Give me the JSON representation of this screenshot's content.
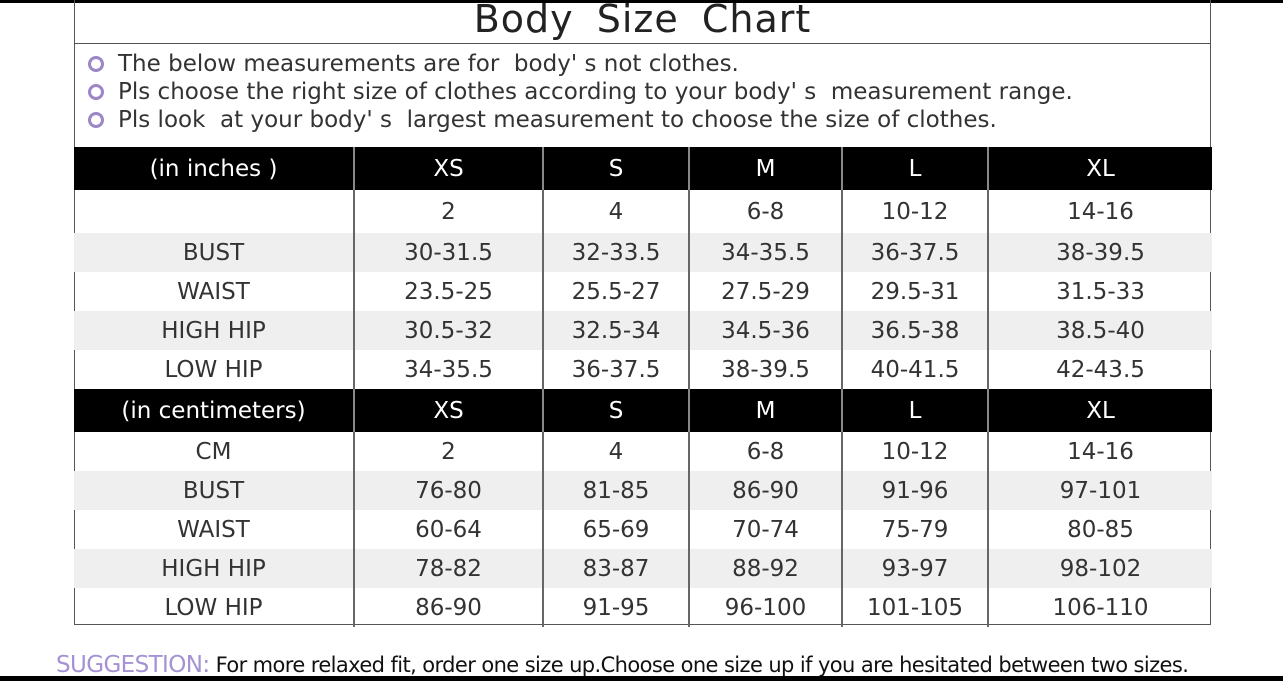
{
  "title": "Body  Size  Chart",
  "notes": [
    "The below measurements are for  body' s not clothes.",
    "Pls choose the right size of clothes according to your body' s  measurement range.",
    "Pls look  at your body' s  largest measurement to choose the size of clothes."
  ],
  "accent_color": "#9b86c8",
  "inches": {
    "header": [
      "(in  inches )",
      "XS",
      "S",
      "M",
      "L",
      "XL"
    ],
    "rows": [
      [
        "",
        "2",
        "4",
        "6-8",
        "10-12",
        "14-16"
      ],
      [
        "BUST",
        "30-31.5",
        "32-33.5",
        "34-35.5",
        "36-37.5",
        "38-39.5"
      ],
      [
        "WAIST",
        "23.5-25",
        "25.5-27",
        "27.5-29",
        "29.5-31",
        "31.5-33"
      ],
      [
        "HIGH HIP",
        "30.5-32",
        "32.5-34",
        "34.5-36",
        "36.5-38",
        "38.5-40"
      ],
      [
        "LOW HIP",
        "34-35.5",
        "36-37.5",
        "38-39.5",
        "40-41.5",
        "42-43.5"
      ]
    ]
  },
  "centimeters": {
    "header": [
      "(in centimeters)",
      "XS",
      "S",
      "M",
      "L",
      "XL"
    ],
    "rows": [
      [
        "CM",
        "2",
        "4",
        "6-8",
        "10-12",
        "14-16"
      ],
      [
        "BUST",
        "76-80",
        "81-85",
        "86-90",
        "91-96",
        "97-101"
      ],
      [
        "WAIST",
        "60-64",
        "65-69",
        "70-74",
        "75-79",
        "80-85"
      ],
      [
        "HIGH HIP",
        "78-82",
        "83-87",
        "88-92",
        "93-97",
        "98-102"
      ],
      [
        "LOW HIP",
        "86-90",
        "91-95",
        "96-100",
        "101-105",
        "106-110"
      ]
    ]
  },
  "suggestion": {
    "label": "SUGGESTION:",
    "text": " For more relaxed fit, order one size up.Choose one size up if you are hesitated between two sizes."
  }
}
